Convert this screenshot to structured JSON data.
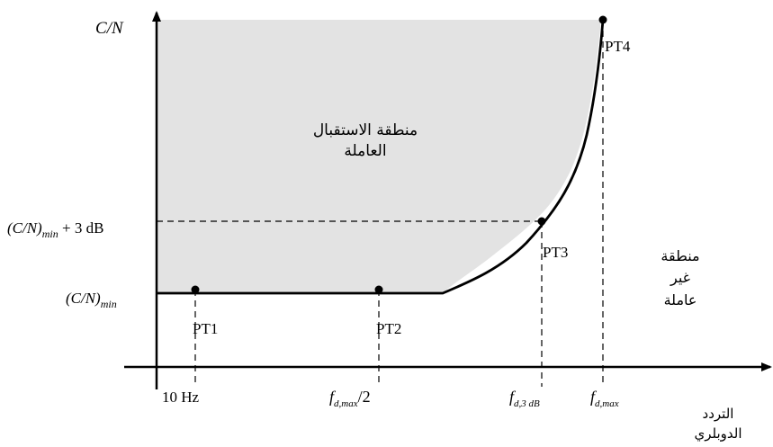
{
  "y_axis": {
    "label": {
      "base": "C",
      "rest": "/N"
    },
    "levels": {
      "min": {
        "main": "(C/N)",
        "sub": "min"
      },
      "min_plus_3db": {
        "main": "(C/N)",
        "sub": "min",
        "suffix": " + 3 dB"
      }
    }
  },
  "x_axis": {
    "label": {
      "line1": "التردد",
      "line2": "الدوبلري"
    },
    "ticks": {
      "t1": {
        "main": "10 Hz"
      },
      "t2": {
        "f": "f",
        "sub": "d,max",
        "suffix": "/2"
      },
      "t3": {
        "f": "f",
        "sub": "d,3 dB"
      },
      "t4": {
        "f": "f",
        "sub": "d,max"
      }
    }
  },
  "points": {
    "pt1": "PT1",
    "pt2": "PT2",
    "pt3": "PT3",
    "pt4": "PT4"
  },
  "regions": {
    "working": {
      "line1": "منطقة الاستقبال",
      "line2": "العاملة"
    },
    "non_working": {
      "line1": "منطقة",
      "line2": "غير",
      "line3": "عاملة"
    }
  },
  "colors": {
    "working_region_fill": "#e3e3e3",
    "curve": "#000000",
    "guides": "#000000"
  }
}
